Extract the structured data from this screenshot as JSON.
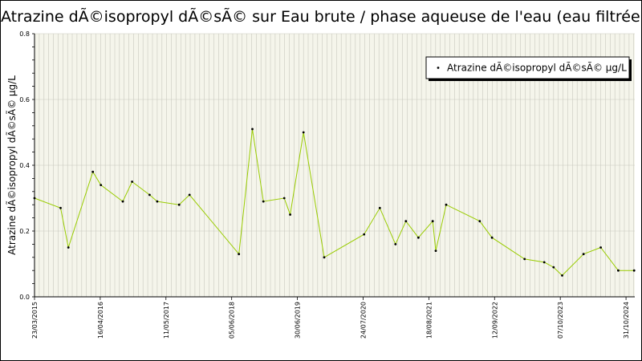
{
  "chart_data": {
    "type": "line",
    "title": "Atrazine dÃ©isopropyl dÃ©sÃ© sur Eau brute / phase aqueuse de l'eau (eau filtrée)",
    "xlabel": "",
    "ylabel": "Atrazine dÃ©isopropyl dÃ©sÃ© µg/L",
    "ylim": [
      0,
      0.8
    ],
    "y_ticks": [
      "0.0",
      "0.2",
      "0.4",
      "0.6",
      "0.8"
    ],
    "x_tick_labels": [
      "23/03/2015",
      "16/04/2016",
      "11/05/2017",
      "05/06/2018",
      "30/06/2019",
      "24/07/2020",
      "18/08/2021",
      "12/09/2022",
      "07/10/2023",
      "31/10/2024"
    ],
    "grid": true,
    "legend_position": "top-right",
    "colors": {
      "line": "#99cc00",
      "marker": "#000000",
      "plot_background": "#f5f5eb",
      "grid": "#c8c8be"
    },
    "series": [
      {
        "name": "Atrazine dÃ©isopropyl dÃ©sÃ© µg/L",
        "x": [
          "2015-03-23",
          "2015-08-25",
          "2015-10-10",
          "2016-03-03",
          "2016-04-20",
          "2016-08-28",
          "2016-10-22",
          "2017-02-03",
          "2017-03-20",
          "2017-07-28",
          "2017-09-28",
          "2018-07-18",
          "2018-10-06",
          "2018-12-10",
          "2019-04-13",
          "2019-05-18",
          "2019-08-05",
          "2019-12-06",
          "2020-07-30",
          "2020-10-31",
          "2021-02-01",
          "2021-04-04",
          "2021-06-17",
          "2021-09-10",
          "2021-09-28",
          "2021-11-29",
          "2022-06-16",
          "2022-08-28",
          "2023-03-09",
          "2023-07-04",
          "2023-08-28",
          "2023-10-18",
          "2024-02-22",
          "2024-06-03",
          "2024-09-15",
          "2024-12-18"
        ],
        "values": [
          0.3,
          0.27,
          0.15,
          0.38,
          0.34,
          0.29,
          0.35,
          0.31,
          0.29,
          0.28,
          0.31,
          0.13,
          0.51,
          0.29,
          0.3,
          0.25,
          0.5,
          0.12,
          0.19,
          0.27,
          0.16,
          0.23,
          0.18,
          0.23,
          0.14,
          0.28,
          0.23,
          0.18,
          0.115,
          0.105,
          0.09,
          0.065,
          0.13,
          0.15,
          0.08,
          0.08
        ]
      }
    ]
  }
}
